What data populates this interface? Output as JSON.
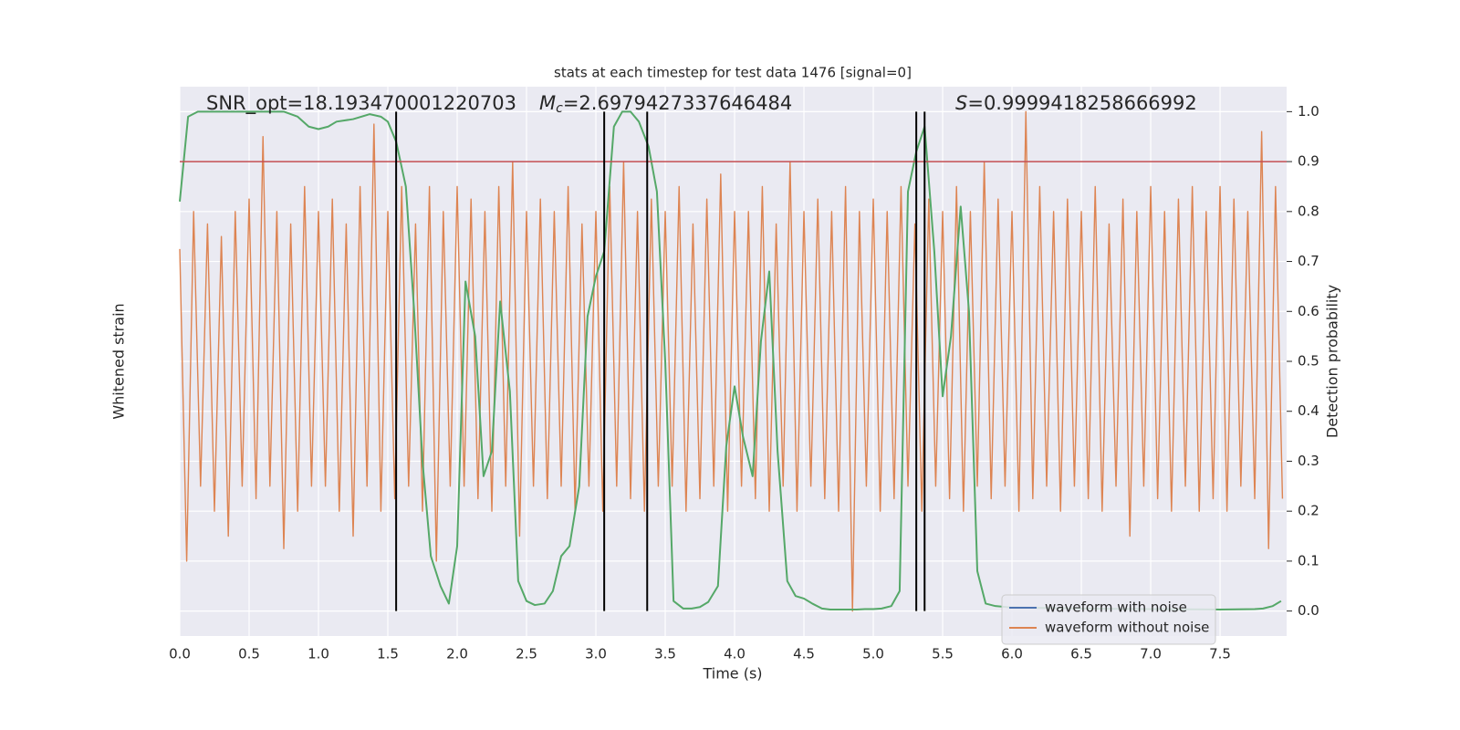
{
  "chart_data": {
    "type": "line",
    "title": "stats at each timestep for test data 1476 [signal=0]",
    "xlabel": "Time (s)",
    "ylabel": "Whitened strain",
    "y2label": "Detection probability",
    "xlim": [
      0,
      7.98
    ],
    "ylim": [
      -1.1,
      1.1
    ],
    "y2lim": [
      -0.05,
      1.05
    ],
    "xticks": [
      {
        "value": 0,
        "label": "0.0"
      },
      0.5,
      {
        "value": 1,
        "label": "1.0"
      },
      1.5,
      {
        "value": 2,
        "label": "2.0"
      },
      2.5,
      {
        "value": 3,
        "label": "3.0"
      },
      3.5,
      {
        "value": 4,
        "label": "4.0"
      },
      4.5,
      {
        "value": 5,
        "label": "5.0"
      },
      5.5,
      {
        "value": 6,
        "label": "6.0"
      },
      6.5,
      {
        "value": 7,
        "label": "7.0"
      },
      7.5
    ],
    "y2ticks": [
      {
        "value": 0,
        "label": "0.0"
      },
      0.1,
      0.2,
      0.3,
      0.4,
      0.5,
      0.6,
      0.7,
      0.8,
      0.9,
      {
        "value": 1,
        "label": "1.0"
      }
    ],
    "grid": true,
    "legend_loc": "lower right",
    "annotations": [
      {
        "text": "SNR_opt=18.193470001220703"
      },
      {
        "symbol": "M",
        "subscript": "c",
        "text": "=2.6979427337646484"
      },
      {
        "symbol": "S",
        "text": "=0.9999418258666992"
      }
    ],
    "threshold": {
      "value": 0.9,
      "color": "#c44e52"
    },
    "vlines": {
      "x": [
        1.56,
        3.06,
        3.37,
        5.31,
        5.37
      ],
      "ymin": 0,
      "ymax": 1,
      "color": "#000000"
    },
    "series": [
      {
        "name": "waveform with noise",
        "color": "#4c72b0"
      },
      {
        "name": "waveform without noise",
        "color": "#dd8452",
        "x": [
          0,
          0.05,
          0.1,
          0.15,
          0.2,
          0.25,
          0.3,
          0.35,
          0.4,
          0.45,
          0.5,
          0.55,
          0.6,
          0.65,
          0.7,
          0.75,
          0.8,
          0.85,
          0.9,
          0.95,
          1,
          1.05,
          1.1,
          1.15,
          1.2,
          1.25,
          1.3,
          1.35,
          1.4,
          1.45,
          1.5,
          1.55,
          1.6,
          1.65,
          1.7,
          1.75,
          1.8,
          1.85,
          1.9,
          1.95,
          2,
          2.05,
          2.1,
          2.15,
          2.2,
          2.25,
          2.3,
          2.35,
          2.4,
          2.45,
          2.5,
          2.55,
          2.6,
          2.65,
          2.7,
          2.75,
          2.8,
          2.85,
          2.9,
          2.95,
          3,
          3.05,
          3.1,
          3.15,
          3.2,
          3.25,
          3.3,
          3.35,
          3.4,
          3.45,
          3.5,
          3.55,
          3.6,
          3.65,
          3.7,
          3.75,
          3.8,
          3.85,
          3.9,
          3.95,
          4,
          4.05,
          4.1,
          4.15,
          4.2,
          4.25,
          4.3,
          4.35,
          4.4,
          4.45,
          4.5,
          4.55,
          4.6,
          4.65,
          4.7,
          4.75,
          4.8,
          4.85,
          4.9,
          4.95,
          5,
          5.05,
          5.1,
          5.15,
          5.2,
          5.25,
          5.3,
          5.35,
          5.4,
          5.45,
          5.5,
          5.55,
          5.6,
          5.65,
          5.7,
          5.75,
          5.8,
          5.85,
          5.9,
          5.95,
          6,
          6.05,
          6.1,
          6.15,
          6.2,
          6.25,
          6.3,
          6.35,
          6.4,
          6.45,
          6.5,
          6.55,
          6.6,
          6.65,
          6.7,
          6.75,
          6.8,
          6.85,
          6.9,
          6.95,
          7,
          7.05,
          7.1,
          7.15,
          7.2,
          7.25,
          7.3,
          7.35,
          7.4,
          7.45,
          7.5,
          7.55,
          7.6,
          7.65,
          7.7,
          7.75,
          7.8,
          7.85,
          7.9,
          7.95
        ],
        "values": [
          0.45,
          -0.8,
          0.6,
          -0.5,
          0.55,
          -0.6,
          0.5,
          -0.7,
          0.6,
          -0.5,
          0.65,
          -0.55,
          0.9,
          -0.5,
          0.6,
          -0.75,
          0.55,
          -0.6,
          0.7,
          -0.5,
          0.6,
          -0.5,
          0.65,
          -0.6,
          0.55,
          -0.7,
          0.7,
          -0.5,
          0.95,
          -0.6,
          0.6,
          -0.55,
          0.7,
          -0.5,
          0.55,
          -0.6,
          0.7,
          -0.8,
          0.6,
          -0.5,
          0.7,
          -0.5,
          0.65,
          -0.55,
          0.6,
          -0.6,
          0.7,
          -0.5,
          0.8,
          -0.7,
          0.6,
          -0.5,
          0.65,
          -0.55,
          0.6,
          -0.5,
          0.7,
          -0.6,
          0.55,
          -0.5,
          0.6,
          -0.6,
          0.7,
          -0.5,
          0.8,
          -0.55,
          0.6,
          -0.6,
          0.65,
          -0.5,
          0.6,
          -0.5,
          0.7,
          -0.6,
          0.55,
          -0.55,
          0.65,
          -0.5,
          0.75,
          -0.6,
          0.6,
          -0.5,
          0.6,
          -0.55,
          0.7,
          -0.6,
          0.55,
          -0.5,
          0.8,
          -0.6,
          0.6,
          -0.5,
          0.65,
          -0.55,
          0.6,
          -0.6,
          0.7,
          -1.0,
          0.6,
          -0.5,
          0.65,
          -0.6,
          0.6,
          -0.55,
          0.7,
          -0.5,
          0.55,
          -0.6,
          0.65,
          -0.5,
          0.6,
          -0.55,
          0.7,
          -0.6,
          0.6,
          -0.5,
          0.8,
          -0.55,
          0.65,
          -0.5,
          0.6,
          -0.6,
          1.0,
          -0.55,
          0.7,
          -0.5,
          0.6,
          -0.6,
          0.65,
          -0.5,
          0.6,
          -0.55,
          0.7,
          -0.6,
          0.55,
          -0.5,
          0.65,
          -0.7,
          0.6,
          -0.5,
          0.7,
          -0.55,
          0.6,
          -0.6,
          0.65,
          -0.5,
          0.7,
          -0.6,
          0.6,
          -0.55,
          0.7,
          -0.6,
          0.65,
          -0.5,
          0.6,
          -0.55,
          0.92,
          -0.75,
          0.7,
          -0.55
        ]
      },
      {
        "color": "#55a868",
        "axis": "y2",
        "x": [
          0,
          0.06,
          0.13,
          0.5,
          0.75,
          0.85,
          0.93,
          1,
          1.07,
          1.13,
          1.25,
          1.37,
          1.45,
          1.5,
          1.56,
          1.63,
          1.69,
          1.75,
          1.81,
          1.88,
          1.94,
          2,
          2.06,
          2.13,
          2.19,
          2.25,
          2.31,
          2.38,
          2.44,
          2.5,
          2.56,
          2.63,
          2.69,
          2.75,
          2.81,
          2.88,
          2.94,
          3,
          3.06,
          3.13,
          3.19,
          3.25,
          3.31,
          3.38,
          3.44,
          3.5,
          3.56,
          3.63,
          3.69,
          3.75,
          3.81,
          3.88,
          3.94,
          4,
          4.06,
          4.13,
          4.19,
          4.25,
          4.31,
          4.38,
          4.44,
          4.5,
          4.56,
          4.63,
          4.69,
          4.75,
          4.81,
          4.88,
          4.94,
          5,
          5.06,
          5.13,
          5.19,
          5.25,
          5.31,
          5.37,
          5.44,
          5.5,
          5.56,
          5.63,
          5.69,
          5.75,
          5.81,
          5.88,
          6,
          6.5,
          7,
          7.5,
          7.75,
          7.81,
          7.88,
          7.94
        ],
        "values": [
          0.82,
          0.99,
          1,
          1,
          1,
          0.99,
          0.97,
          0.965,
          0.97,
          0.98,
          0.985,
          0.995,
          0.99,
          0.98,
          0.94,
          0.85,
          0.6,
          0.3,
          0.11,
          0.05,
          0.015,
          0.13,
          0.66,
          0.55,
          0.27,
          0.32,
          0.62,
          0.44,
          0.06,
          0.02,
          0.012,
          0.015,
          0.04,
          0.11,
          0.13,
          0.25,
          0.59,
          0.67,
          0.72,
          0.97,
          1,
          1,
          0.98,
          0.93,
          0.84,
          0.5,
          0.02,
          0.005,
          0.005,
          0.008,
          0.018,
          0.05,
          0.33,
          0.45,
          0.35,
          0.27,
          0.54,
          0.68,
          0.32,
          0.06,
          0.03,
          0.025,
          0.015,
          0.005,
          0.003,
          0.003,
          0.003,
          0.003,
          0.004,
          0.004,
          0.005,
          0.01,
          0.04,
          0.84,
          0.92,
          0.97,
          0.72,
          0.43,
          0.55,
          0.81,
          0.6,
          0.08,
          0.015,
          0.01,
          0.007,
          0.005,
          0.004,
          0.003,
          0.004,
          0.005,
          0.01,
          0.02
        ]
      }
    ]
  }
}
